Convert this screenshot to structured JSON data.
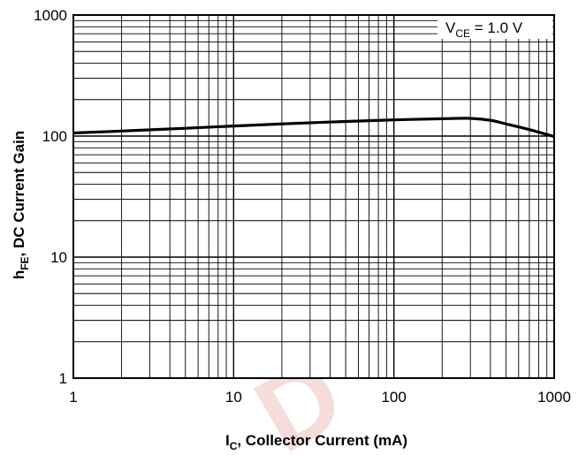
{
  "chart_data": {
    "type": "line",
    "xscale": "log",
    "yscale": "log",
    "xlim": [
      1,
      1000
    ],
    "ylim": [
      1,
      1000
    ],
    "grid": true,
    "xticks": [
      "1",
      "10",
      "100",
      "1000"
    ],
    "yticks": [
      "1",
      "10",
      "100",
      "1000"
    ],
    "xlabel": {
      "main": "I",
      "sub": "C",
      "rest": ", Collector Current (mA)"
    },
    "ylabel": {
      "main": "h",
      "sub": "FE",
      "rest": ", DC Current Gain"
    },
    "annotation": {
      "main": "V",
      "sub": "CE",
      "rest": " = 1.0 V"
    },
    "series": [
      {
        "x": [
          1,
          2,
          5,
          10,
          20,
          50,
          100,
          200,
          300,
          400,
          500,
          700,
          1000
        ],
        "y": [
          106,
          110,
          116,
          121,
          126,
          132,
          136,
          139,
          140,
          135,
          126,
          113,
          99
        ]
      }
    ],
    "colors": {
      "line": "#000000",
      "grid": "#000000",
      "watermark": "#f7dcdc"
    },
    "watermark": "D"
  }
}
